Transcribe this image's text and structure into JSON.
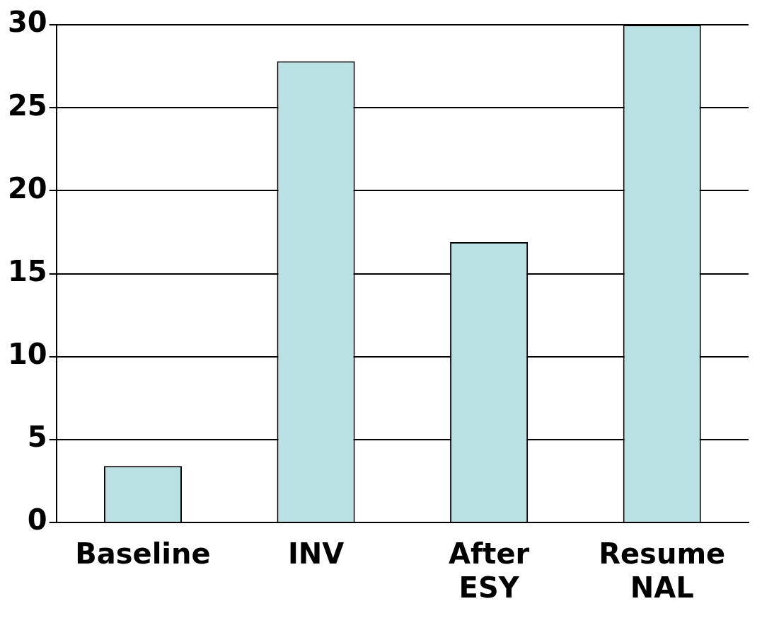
{
  "chart_data": {
    "type": "bar",
    "categories": [
      "Baseline",
      "INV",
      "After ESY",
      "Resume NAL"
    ],
    "values": [
      3.4,
      27.8,
      16.9,
      30
    ],
    "color": "#b9e0e3",
    "ylim": [
      0,
      30
    ],
    "yticks": [
      0,
      5,
      10,
      15,
      20,
      25,
      30
    ],
    "grid": "y",
    "legend": false
  }
}
